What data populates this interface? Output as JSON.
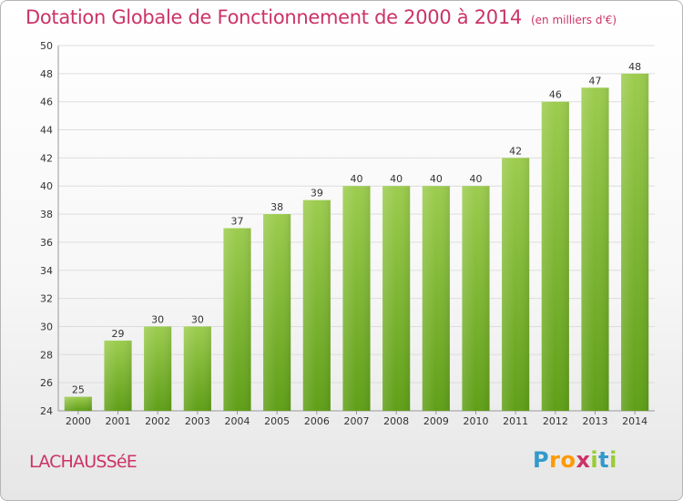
{
  "header": {
    "title": "Dotation Globale de Fonctionnement de 2000 à 2014",
    "unit_note": "(en milliers d'€)"
  },
  "footer": {
    "commune": "LACHAUSSéE",
    "logo_letters": [
      "P",
      "r",
      "o",
      "x",
      "i",
      "t",
      "i"
    ],
    "logo_colors": [
      "#3399cc",
      "#ff9900",
      "#ff9900",
      "#cc3366",
      "#99cc33",
      "#3399cc",
      "#99cc33"
    ]
  },
  "colors": {
    "title": "#cc3366",
    "bar_top": "#9ccc4e",
    "bar_bottom": "#5f9f17",
    "grid": "#dddddd"
  },
  "chart_data": {
    "type": "bar",
    "title": "Dotation Globale de Fonctionnement de 2000 à 2014",
    "subtitle": "(en milliers d'€)",
    "categories": [
      "2000",
      "2001",
      "2002",
      "2003",
      "2004",
      "2005",
      "2006",
      "2007",
      "2008",
      "2009",
      "2010",
      "2011",
      "2012",
      "2013",
      "2014"
    ],
    "values": [
      25,
      29,
      30,
      30,
      37,
      38,
      39,
      40,
      40,
      40,
      40,
      42,
      46,
      47,
      48
    ],
    "ylim": [
      24,
      50
    ],
    "yticks": [
      24,
      26,
      28,
      30,
      32,
      34,
      36,
      38,
      40,
      42,
      44,
      46,
      48,
      50
    ],
    "grid": true,
    "xlabel": "",
    "ylabel": ""
  }
}
